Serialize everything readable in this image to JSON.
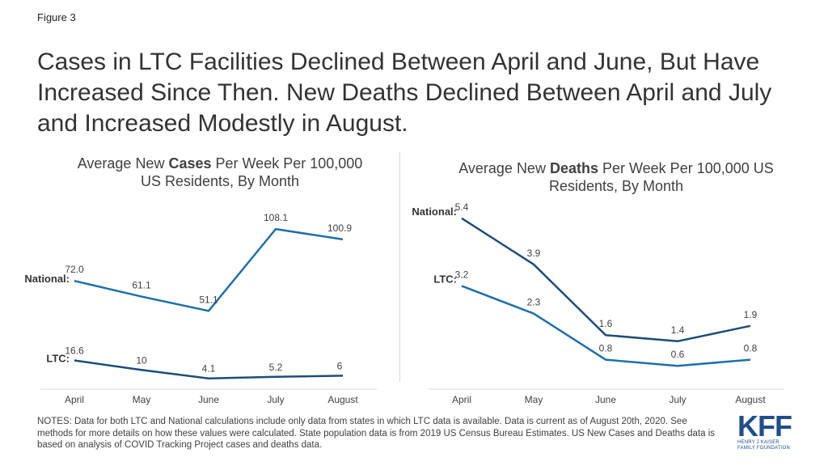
{
  "figure_label": "Figure 3",
  "headline": "Cases in LTC Facilities Declined Between April and June, But Have Increased Since Then. New Deaths Declined Between April and July and Increased Modestly in August.",
  "notes": "NOTES: Data for both LTC and National calculations include only data from states in which LTC data is available. Data is current as of August 20th, 2020. See methods for more details on how these values were calculated. State population data is from 2019 US Census Bureau Estimates. US New Cases and Deaths data is based on analysis of COVID Tracking Project cases and deaths data.",
  "logo": {
    "letters": "KFF",
    "line1": "HENRY J KAISER",
    "line2": "FAMILY FOUNDATION",
    "color": "#1f4e8a"
  },
  "chart_data": [
    {
      "type": "line",
      "title_pre": "Average New ",
      "title_bold": "Cases",
      "title_post": " Per Week Per 100,000 US Residents, By Month",
      "categories": [
        "April",
        "May",
        "June",
        "July",
        "August"
      ],
      "series": [
        {
          "name": "National:",
          "values": [
            72.0,
            61.1,
            51.1,
            108.1,
            100.9
          ],
          "labels": [
            "72.0",
            "61.1",
            "51.1",
            "108.1",
            "100.9"
          ],
          "color": "#1f6fa8"
        },
        {
          "name": "LTC:",
          "values": [
            16.6,
            10,
            4.1,
            5.2,
            6
          ],
          "labels": [
            "16.6",
            "10",
            "4.1",
            "5.2",
            "6"
          ],
          "color": "#1e4d78"
        }
      ],
      "ylim": [
        0,
        120
      ],
      "grid": false,
      "legend": "inline-left"
    },
    {
      "type": "line",
      "title_pre": "Average New ",
      "title_bold": "Deaths",
      "title_post": " Per Week Per 100,000 US Residents, By Month",
      "categories": [
        "April",
        "May",
        "June",
        "July",
        "August"
      ],
      "series": [
        {
          "name": "National:",
          "values": [
            5.4,
            3.9,
            1.6,
            1.4,
            1.9
          ],
          "labels": [
            "5.4",
            "3.9",
            "1.6",
            "1.4",
            "1.9"
          ],
          "color": "#1e4d78"
        },
        {
          "name": "LTC:",
          "values": [
            3.2,
            2.3,
            0.8,
            0.6,
            0.8
          ],
          "labels": [
            "3.2",
            "2.3",
            "0.8",
            "0.6",
            "0.8"
          ],
          "color": "#1f6fa8"
        }
      ],
      "ylim": [
        0,
        6
      ],
      "grid": false,
      "legend": "inline-left"
    }
  ]
}
